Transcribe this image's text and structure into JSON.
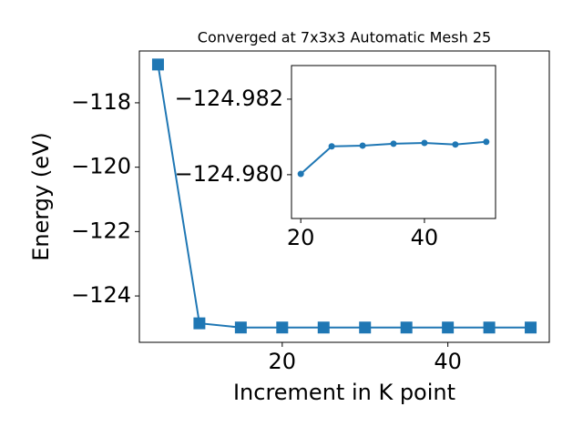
{
  "chart_data": [
    {
      "type": "line",
      "title": "Converged at 7x3x3 Automatic Mesh 25",
      "xlabel": "Increment in K point",
      "ylabel": "Energy (eV)",
      "x": [
        5,
        10,
        15,
        20,
        25,
        30,
        35,
        40,
        45,
        50
      ],
      "series": [
        {
          "color": "#1f77b4",
          "marker": "square",
          "values": [
            -116.81,
            -124.85,
            -124.98,
            -124.98002,
            -124.98075,
            -124.98077,
            -124.98082,
            -124.98084,
            -124.9808,
            -124.98087
          ]
        }
      ],
      "xlim": [
        2.75,
        52.25
      ],
      "ylim": [
        -125.44,
        -116.39
      ],
      "xticks": [
        20,
        40
      ],
      "yticks": [
        {
          "value": -124,
          "label": "−124"
        },
        {
          "value": -122,
          "label": "−122"
        },
        {
          "value": -120,
          "label": "−120"
        },
        {
          "value": -118,
          "label": "−118"
        }
      ]
    },
    {
      "type": "line",
      "x": [
        20,
        25,
        30,
        35,
        40,
        45,
        50
      ],
      "series": [
        {
          "color": "#1f77b4",
          "marker": "circle",
          "values": [
            -124.98002,
            -124.98075,
            -124.98077,
            -124.98082,
            -124.98084,
            -124.9808,
            -124.98087
          ]
        }
      ],
      "xlim": [
        18.5,
        51.5
      ],
      "ylim": [
        -124.97884,
        -124.98289
      ],
      "xticks": [
        20,
        40
      ],
      "yticks": [
        {
          "value": -124.982,
          "label": "−124.982"
        },
        {
          "value": -124.98,
          "label": "−124.980"
        }
      ]
    }
  ]
}
